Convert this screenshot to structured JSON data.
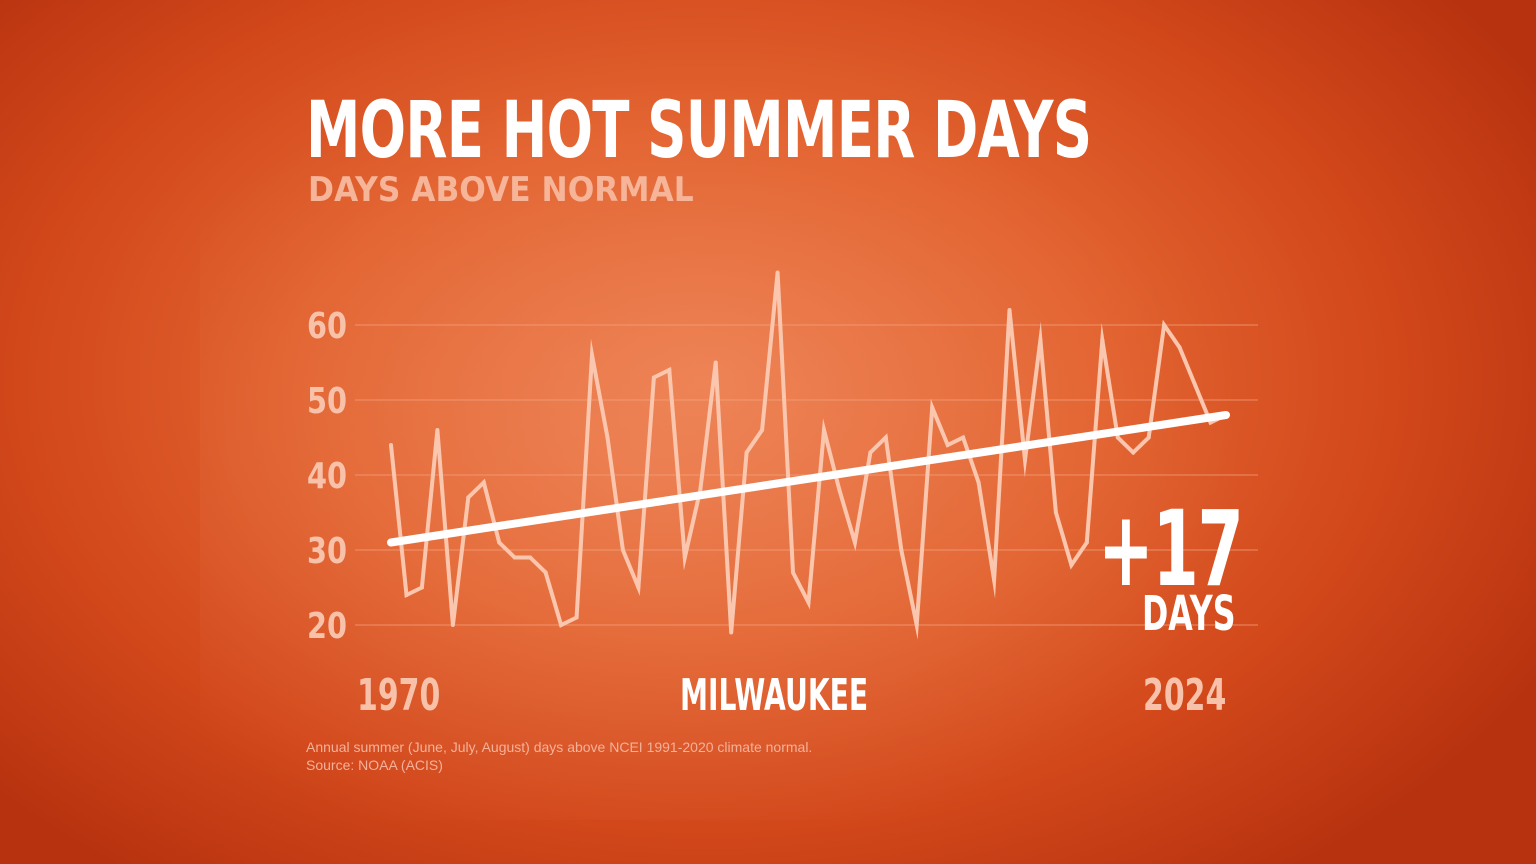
{
  "title": "MORE HOT SUMMER DAYS",
  "subtitle": "DAYS ABOVE NORMAL",
  "callout": {
    "value": "+17",
    "unit": "DAYS"
  },
  "location": "MILWAUKEE",
  "footnote": {
    "line1": "Annual summer (June, July, August) days above NCEI 1991-2020 climate normal.",
    "line2": "Source: NOAA (ACIS)"
  },
  "colors": {
    "background": "#e2622f",
    "series_line": "#fbc6ae",
    "trend_line": "#ffffff",
    "gridline": "#f4a27e",
    "tick_text": "#f8c2aa"
  },
  "chart_data": {
    "type": "line",
    "title": "MORE HOT SUMMER DAYS",
    "subtitle": "DAYS ABOVE NORMAL",
    "x_start_label": "1970",
    "x_end_label": "2024",
    "x": [
      1970,
      1971,
      1972,
      1973,
      1974,
      1975,
      1976,
      1977,
      1978,
      1979,
      1980,
      1981,
      1982,
      1983,
      1984,
      1985,
      1986,
      1987,
      1988,
      1989,
      1990,
      1991,
      1992,
      1993,
      1994,
      1995,
      1996,
      1997,
      1998,
      1999,
      2000,
      2001,
      2002,
      2003,
      2004,
      2005,
      2006,
      2007,
      2008,
      2009,
      2010,
      2011,
      2012,
      2013,
      2014,
      2015,
      2016,
      2017,
      2018,
      2019,
      2020,
      2021,
      2022,
      2023,
      2024
    ],
    "series": [
      {
        "values": [
          44,
          24,
          25,
          46,
          20,
          37,
          39,
          31,
          29,
          29,
          27,
          20,
          21,
          56,
          45,
          30,
          25,
          53,
          54,
          29,
          38,
          55,
          19,
          43,
          46,
          67,
          27,
          23,
          46,
          38,
          31,
          43,
          45,
          30,
          20,
          49,
          44,
          45,
          39,
          26,
          62,
          42,
          58,
          35,
          28,
          31,
          58,
          45,
          43,
          45,
          60,
          57,
          52,
          47,
          48
        ]
      }
    ],
    "trend": {
      "start": {
        "x": 1970,
        "y": 31
      },
      "end": {
        "x": 2024,
        "y": 48
      }
    },
    "yticks": [
      20,
      30,
      40,
      50,
      60
    ],
    "ylim": [
      14,
      70
    ],
    "xlim": [
      1970,
      2024
    ],
    "grid": true,
    "legend": "none"
  }
}
